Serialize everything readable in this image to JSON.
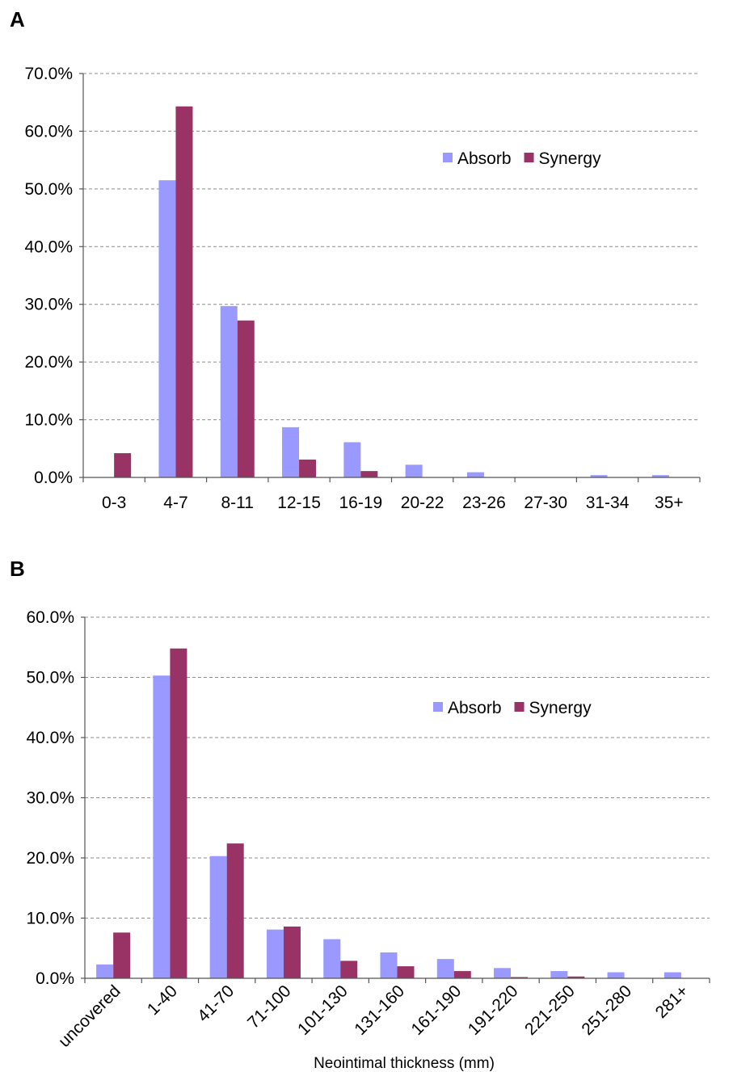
{
  "chart_data": [
    {
      "type": "bar",
      "panel_label": "A",
      "categories": [
        "0-3",
        "4-7",
        "8-11",
        "12-15",
        "16-19",
        "20-22",
        "23-26",
        "27-30",
        "31-34",
        "35+"
      ],
      "series": [
        {
          "name": "Absorb",
          "values": [
            0.0,
            51.5,
            29.7,
            8.7,
            6.1,
            2.2,
            0.9,
            0.0,
            0.4,
            0.4
          ]
        },
        {
          "name": "Synergy",
          "values": [
            4.2,
            64.3,
            27.2,
            3.1,
            1.1,
            0.0,
            0.0,
            0.0,
            0.0,
            0.0
          ]
        }
      ],
      "yticks": [
        "0.0%",
        "10.0%",
        "20.0%",
        "30.0%",
        "40.0%",
        "50.0%",
        "60.0%",
        "70.0%"
      ],
      "ylim": [
        0,
        70
      ],
      "xlabel": "",
      "ylabel": "",
      "grid": true,
      "legend_position": "top-right",
      "colors": {
        "Absorb": "#9999ff",
        "Synergy": "#993366"
      }
    },
    {
      "type": "bar",
      "panel_label": "B",
      "categories": [
        "uncovered",
        "1-40",
        "41-70",
        "71-100",
        "101-130",
        "131-160",
        "161-190",
        "191-220",
        "221-250",
        "251-280",
        "281+"
      ],
      "series": [
        {
          "name": "Absorb",
          "values": [
            2.3,
            50.3,
            20.3,
            8.1,
            6.5,
            4.3,
            3.2,
            1.7,
            1.2,
            1.0,
            1.0
          ]
        },
        {
          "name": "Synergy",
          "values": [
            7.6,
            54.8,
            22.4,
            8.6,
            2.9,
            2.0,
            1.2,
            0.2,
            0.3,
            0.0,
            0.0
          ]
        }
      ],
      "yticks": [
        "0.0%",
        "10.0%",
        "20.0%",
        "30.0%",
        "40.0%",
        "50.0%",
        "60.0%"
      ],
      "ylim": [
        0,
        60
      ],
      "xlabel": "Neointimal  thickness (mm)",
      "ylabel": "",
      "grid": true,
      "legend_position": "top-right",
      "colors": {
        "Absorb": "#9999ff",
        "Synergy": "#993366"
      }
    }
  ]
}
